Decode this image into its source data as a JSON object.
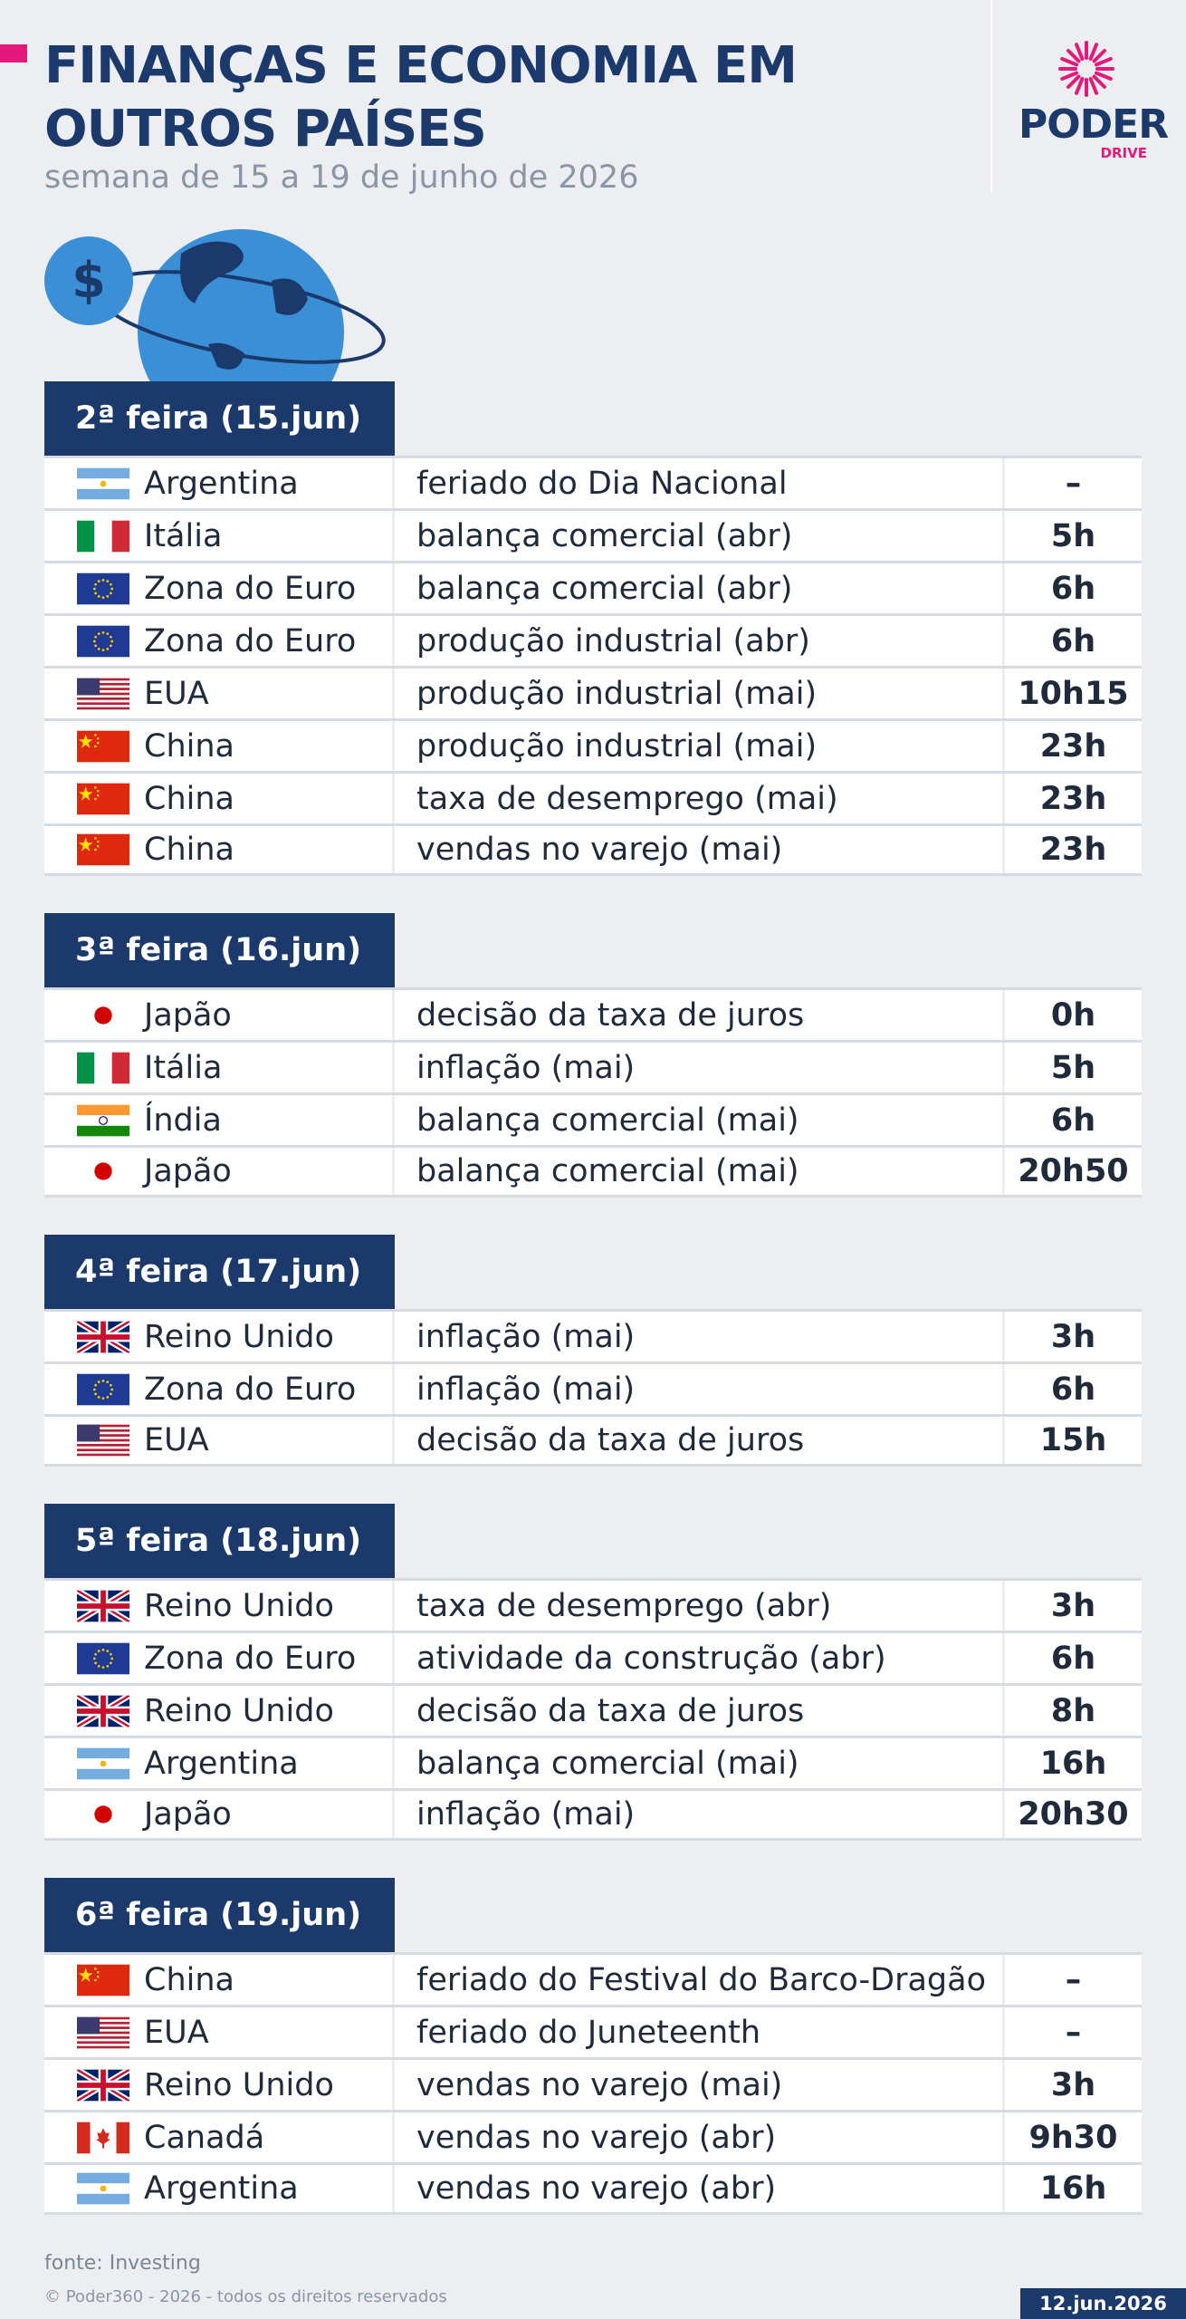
{
  "header": {
    "title": "FINANÇAS E ECONOMIA EM OUTROS PAÍSES",
    "subtitle": "semana de 15 a 19 de junho de 2026"
  },
  "logo": {
    "name": "PODER",
    "sub": "DRIVE"
  },
  "days": [
    {
      "label": "2ª feira (15.jun)",
      "rows": [
        {
          "country": "Argentina",
          "event": "feriado do Dia Nacional",
          "time": "–"
        },
        {
          "country": "Itália",
          "event": "balança comercial (abr)",
          "time": "5h"
        },
        {
          "country": "Zona do Euro",
          "event": "balança comercial (abr)",
          "time": "6h"
        },
        {
          "country": "Zona do Euro",
          "event": "produção industrial (abr)",
          "time": "6h"
        },
        {
          "country": "EUA",
          "event": "produção industrial (mai)",
          "time": "10h15"
        },
        {
          "country": "China",
          "event": "produção industrial (mai)",
          "time": "23h"
        },
        {
          "country": "China",
          "event": "taxa de desemprego (mai)",
          "time": "23h"
        },
        {
          "country": "China",
          "event": "vendas no varejo (mai)",
          "time": "23h"
        }
      ]
    },
    {
      "label": "3ª feira (16.jun)",
      "rows": [
        {
          "country": "Japão",
          "event": "decisão da taxa de juros",
          "time": "0h"
        },
        {
          "country": "Itália",
          "event": "inflação (mai)",
          "time": "5h"
        },
        {
          "country": "Índia",
          "event": "balança comercial (mai)",
          "time": "6h"
        },
        {
          "country": "Japão",
          "event": "balança comercial (mai)",
          "time": "20h50"
        }
      ]
    },
    {
      "label": "4ª feira (17.jun)",
      "rows": [
        {
          "country": "Reino Unido",
          "event": "inflação (mai)",
          "time": "3h"
        },
        {
          "country": "Zona do Euro",
          "event": "inflação (mai)",
          "time": "6h"
        },
        {
          "country": "EUA",
          "event": "decisão da taxa de juros",
          "time": "15h"
        }
      ]
    },
    {
      "label": "5ª feira (18.jun)",
      "rows": [
        {
          "country": "Reino Unido",
          "event": "taxa de desemprego (abr)",
          "time": "3h"
        },
        {
          "country": "Zona do Euro",
          "event": "atividade da construção (abr)",
          "time": "6h"
        },
        {
          "country": "Reino Unido",
          "event": "decisão da taxa de juros",
          "time": "8h"
        },
        {
          "country": "Argentina",
          "event": "balança comercial (mai)",
          "time": "16h"
        },
        {
          "country": "Japão",
          "event": "inflação (mai)",
          "time": "20h30"
        }
      ]
    },
    {
      "label": "6ª feira (19.jun)",
      "rows": [
        {
          "country": "China",
          "event": "feriado do Festival do Barco-Dragão",
          "time": "–"
        },
        {
          "country": "EUA",
          "event": "feriado do Juneteenth",
          "time": "–"
        },
        {
          "country": "Reino Unido",
          "event": "vendas no varejo (mai)",
          "time": "3h"
        },
        {
          "country": "Canadá",
          "event": "vendas no varejo (abr)",
          "time": "9h30"
        },
        {
          "country": "Argentina",
          "event": "vendas no varejo (abr)",
          "time": "16h"
        }
      ]
    }
  ],
  "footer": {
    "source": "fonte: Investing",
    "copyright": "© Poder360 - 2026 - todos os direitos reservados",
    "date": "12.jun.2026"
  }
}
